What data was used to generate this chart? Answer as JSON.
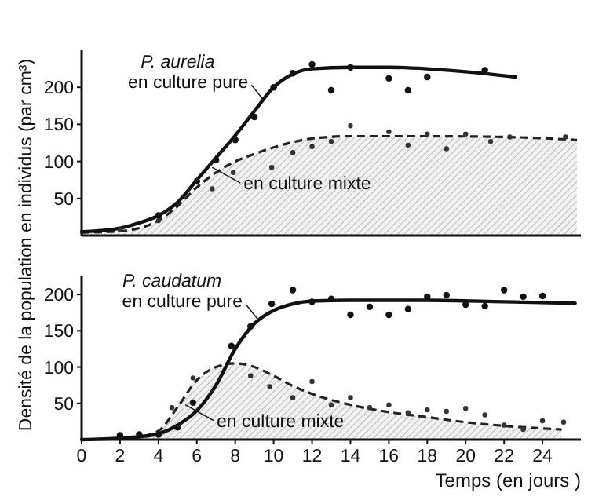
{
  "chart_data": [
    {
      "type": "line",
      "ylabel": "Densité de la population en individus (par cm³)",
      "xlim": [
        0,
        26
      ],
      "ylim": [
        0,
        250
      ],
      "yticks": [
        50,
        100,
        150,
        200
      ],
      "tick_labels": "y",
      "grid": false,
      "annotations": [
        "P. aurelia",
        {
          "text": "en culture pure",
          "x": 9.5,
          "y": 182
        },
        {
          "text": "en culture mixte",
          "x": 6.8,
          "y": 92
        }
      ],
      "series": [
        {
          "type": "area",
          "color": "#222222",
          "line_style": "dashed",
          "x": [
            0,
            2,
            3,
            4,
            5,
            6,
            7,
            8,
            9,
            10,
            11,
            12,
            14,
            18,
            22,
            25.8
          ],
          "values": [
            4,
            6,
            10,
            20,
            40,
            65,
            85,
            100,
            110,
            119,
            126,
            131,
            134,
            134,
            133,
            129
          ]
        },
        {
          "color": "#111111",
          "line_style": "solid",
          "x": [
            0,
            2,
            3,
            4,
            5,
            6,
            7,
            8,
            9,
            10,
            11,
            12,
            14,
            16,
            18,
            20,
            22.6
          ],
          "values": [
            5,
            10,
            17,
            27,
            45,
            75,
            105,
            135,
            168,
            200,
            218,
            225,
            227,
            227,
            225,
            221,
            214
          ]
        },
        {
          "type": "scatter",
          "color": "#111111",
          "marker": "circle",
          "x": [
            4,
            6,
            7,
            8,
            9,
            10,
            11,
            12,
            13,
            14,
            16,
            17,
            18,
            21
          ],
          "values": [
            27,
            73,
            102,
            129,
            160,
            200,
            219,
            231,
            196,
            227,
            212,
            196,
            214,
            223
          ]
        },
        {
          "type": "scatter",
          "color": "#333333",
          "marker": "circle",
          "x": [
            2,
            4,
            6.8,
            7.9,
            9.9,
            11,
            12,
            13,
            14,
            16,
            17,
            18,
            19,
            20,
            21.3,
            22.3,
            25.2
          ],
          "values": [
            8,
            20,
            63,
            85,
            92,
            112,
            120,
            127,
            148,
            140,
            122,
            137,
            117,
            137,
            127,
            133,
            133
          ]
        }
      ]
    },
    {
      "type": "line",
      "xlabel": "Temps (en jours )",
      "xlim": [
        0,
        26
      ],
      "ylim": [
        0,
        225
      ],
      "xticks": [
        0,
        2,
        4,
        6,
        8,
        10,
        12,
        14,
        16,
        18,
        20,
        22,
        24
      ],
      "yticks": [
        50,
        100,
        150,
        200
      ],
      "grid": false,
      "annotations": [
        "P. caudatum",
        {
          "text": "en culture pure",
          "x": 9.2,
          "y": 165
        },
        {
          "text": "en culture mixte",
          "x": 5.4,
          "y": 48
        }
      ],
      "series": [
        {
          "type": "area",
          "color": "#222222",
          "line_style": "dashed",
          "x": [
            0,
            2,
            3,
            4,
            5,
            6,
            7,
            8,
            9,
            10,
            11,
            12,
            14,
            16,
            18,
            20,
            22,
            25
          ],
          "values": [
            0,
            2,
            4,
            12,
            45,
            82,
            100,
            105,
            100,
            88,
            74,
            63,
            48,
            38,
            31,
            24,
            19,
            14
          ]
        },
        {
          "color": "#111111",
          "line_style": "solid",
          "x": [
            0,
            2,
            3,
            4,
            5,
            6,
            7,
            8,
            9,
            10,
            11,
            12,
            14,
            18,
            22,
            25.7
          ],
          "values": [
            0,
            2,
            4,
            8,
            20,
            40,
            75,
            125,
            160,
            178,
            187,
            191,
            192,
            192,
            190,
            188
          ]
        },
        {
          "type": "scatter",
          "color": "#111111",
          "marker": "circle",
          "x": [
            2,
            3,
            4,
            5,
            5.8,
            7.8,
            8.8,
            9.9,
            11,
            12,
            13,
            14,
            15,
            16,
            17,
            18,
            19,
            20,
            21,
            22,
            23,
            24
          ],
          "values": [
            6,
            7,
            7,
            17,
            51,
            129,
            156,
            187,
            206,
            190,
            194,
            172,
            183,
            172,
            180,
            197,
            199,
            186,
            184,
            206,
            197,
            198
          ]
        },
        {
          "type": "scatter",
          "color": "#333333",
          "marker": "circle",
          "x": [
            4.7,
            5.8,
            8.8,
            9.8,
            11,
            12,
            13,
            14,
            15,
            16,
            17,
            18,
            19,
            20,
            21,
            22,
            23,
            24,
            25.1
          ],
          "values": [
            44,
            85,
            88,
            73,
            58,
            80,
            48,
            58,
            44,
            48,
            37,
            41,
            39,
            43,
            34,
            20,
            14,
            26,
            24
          ]
        }
      ]
    }
  ]
}
